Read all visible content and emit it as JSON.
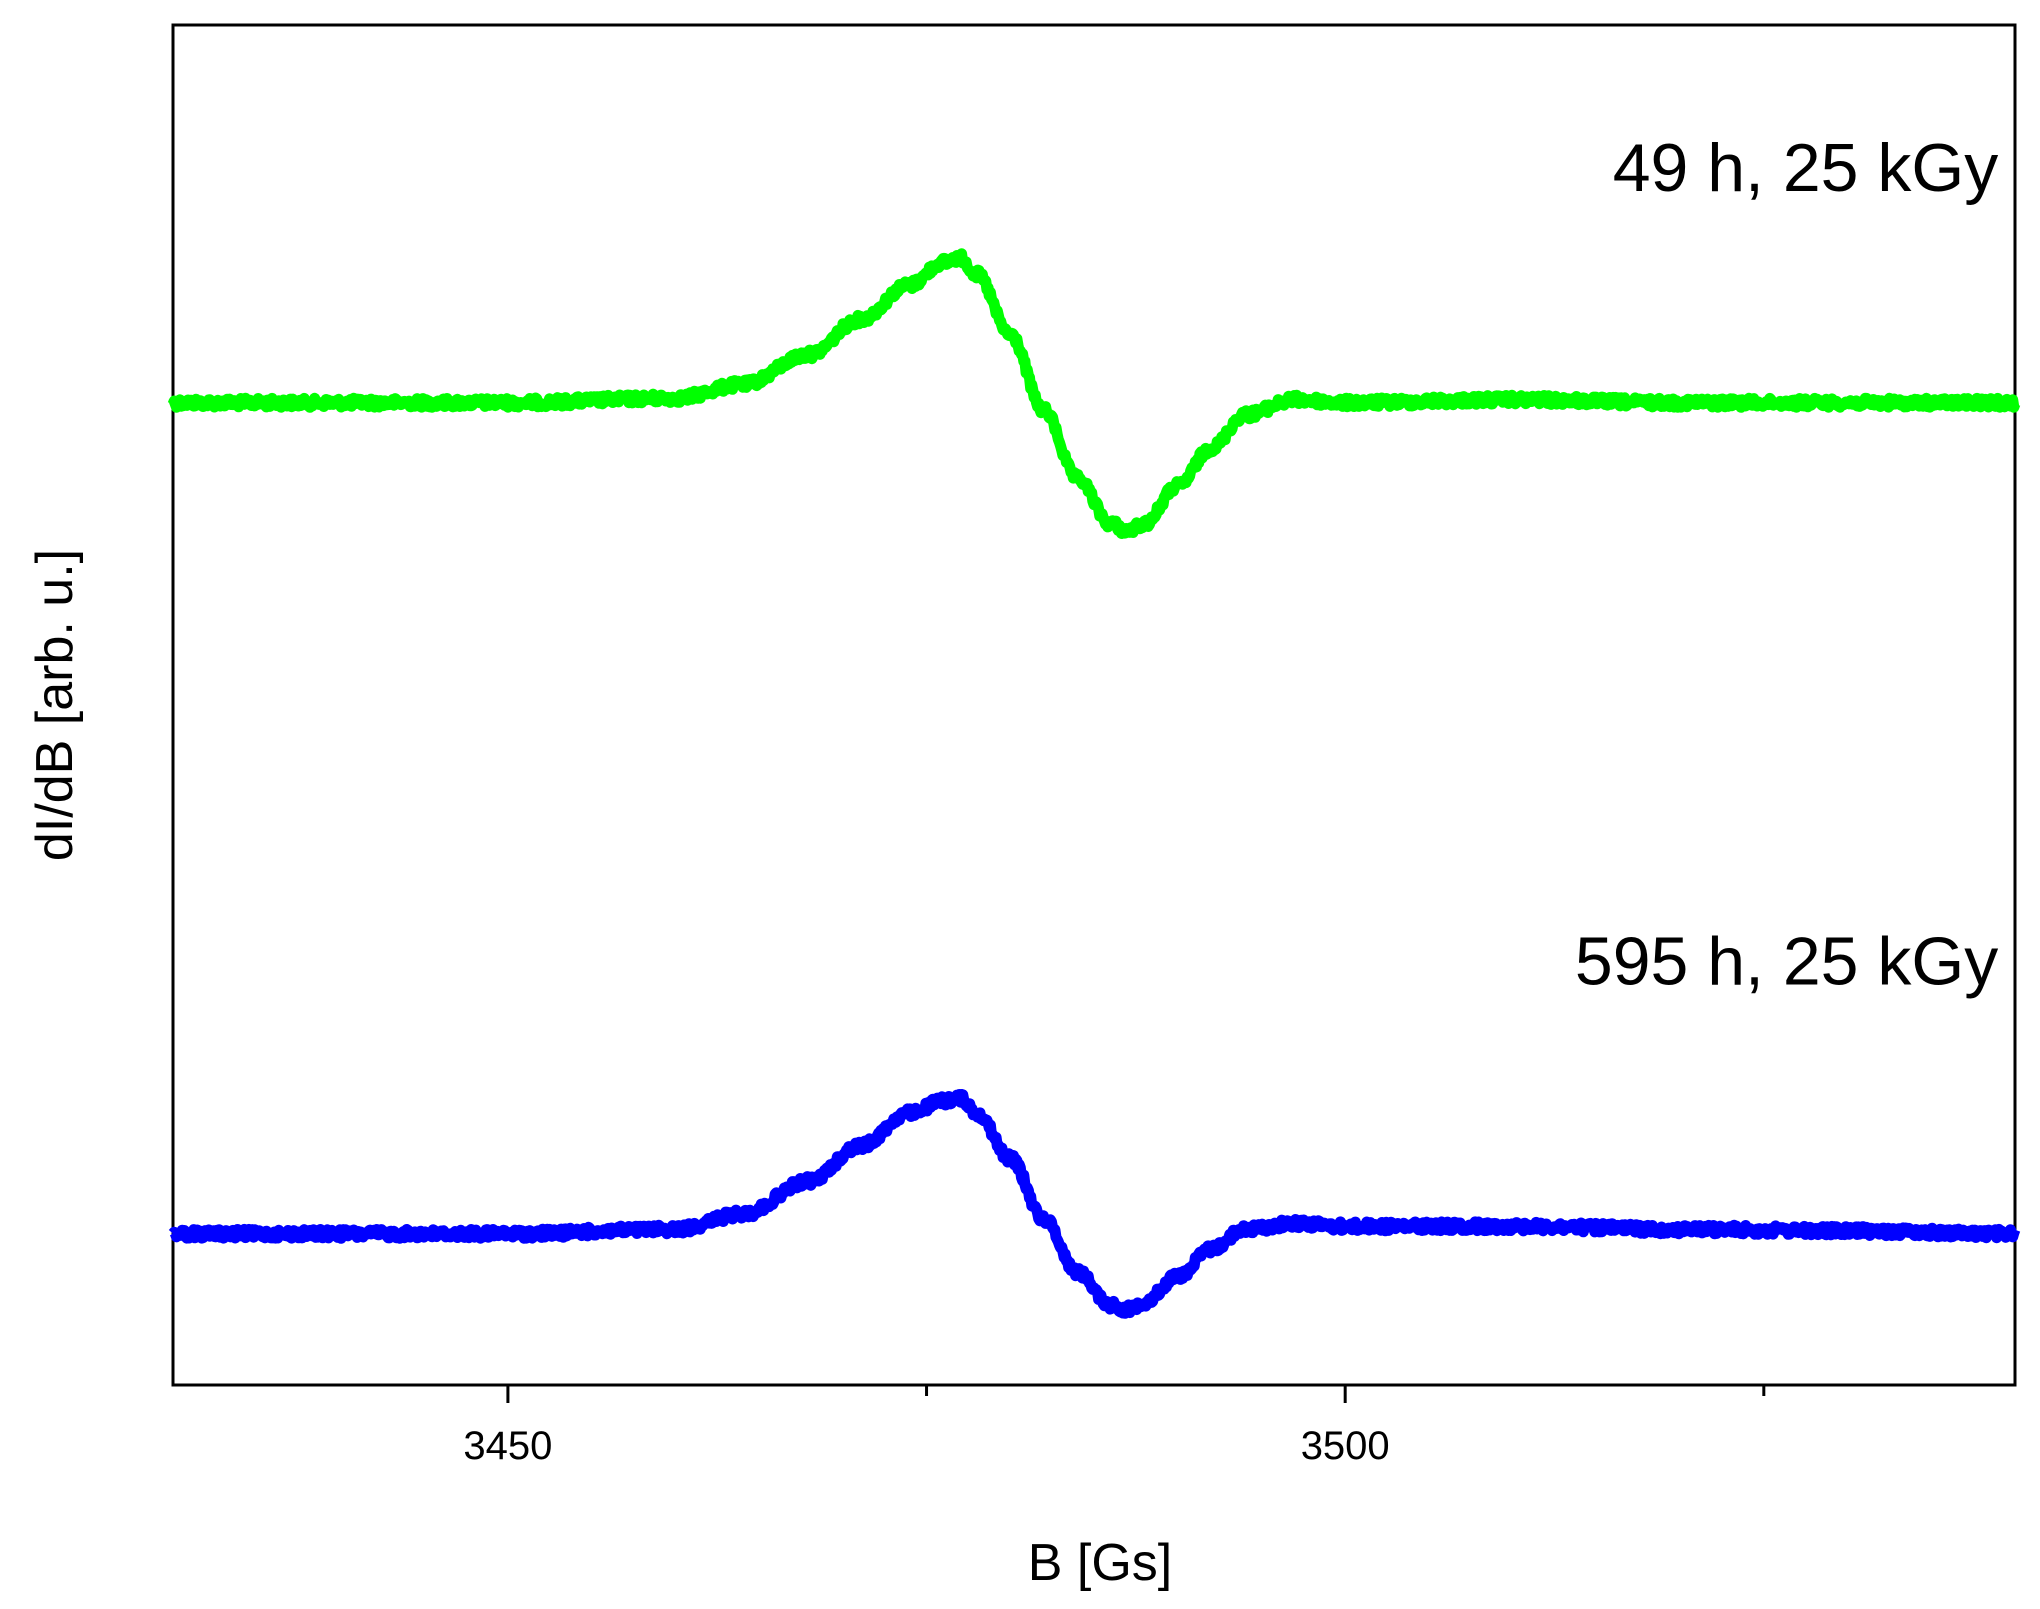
{
  "chart_data": {
    "type": "line",
    "xlabel": "B [Gs]",
    "ylabel": "dI/dB [arb. u.]",
    "xlim": [
      3430,
      3540
    ],
    "ylim": [
      -6.5,
      2.5
    ],
    "x_ticks_major": [
      3450,
      3500
    ],
    "x_ticks_minor": [
      3475,
      3525
    ],
    "y_ticks_shown": false,
    "grid": false,
    "legend": "none",
    "series": [
      {
        "name": "49 h, 25 kGy",
        "color": "#00ff00",
        "x": [
          3430,
          3440,
          3450,
          3460,
          3464,
          3468,
          3471,
          3474,
          3476,
          3477,
          3478,
          3480,
          3482,
          3484,
          3486,
          3487,
          3488,
          3490,
          3492,
          3494,
          3497,
          3500,
          3510,
          3520,
          3530,
          3540
        ],
        "values": [
          0,
          0,
          0,
          0.03,
          0.12,
          0.32,
          0.55,
          0.78,
          0.93,
          0.96,
          0.85,
          0.45,
          -0.05,
          -0.5,
          -0.8,
          -0.85,
          -0.8,
          -0.55,
          -0.3,
          -0.08,
          0.02,
          0.0,
          0.02,
          0.0,
          0.0,
          0.0
        ]
      },
      {
        "name": "595 h, 25 kGy",
        "color": "#0000ff",
        "x": [
          3430,
          3440,
          3450,
          3460,
          3464,
          3468,
          3471,
          3474,
          3476,
          3477,
          3478,
          3480,
          3482,
          3484,
          3486,
          3487,
          3488,
          3490,
          3492,
          3494,
          3497,
          3500,
          3510,
          3520,
          3530,
          3540
        ],
        "values": [
          -5.5,
          -5.5,
          -5.5,
          -5.47,
          -5.37,
          -5.15,
          -4.92,
          -4.7,
          -4.62,
          -4.6,
          -4.7,
          -5.0,
          -5.4,
          -5.75,
          -5.97,
          -6.0,
          -5.95,
          -5.78,
          -5.6,
          -5.47,
          -5.43,
          -5.45,
          -5.45,
          -5.47,
          -5.48,
          -5.5
        ]
      }
    ],
    "annotations": [
      {
        "text": "49 h, 25 kGy",
        "x": 3539,
        "y": 1.4
      },
      {
        "text": "595 h, 25 kGy",
        "x": 3539,
        "y": -3.85
      }
    ]
  }
}
